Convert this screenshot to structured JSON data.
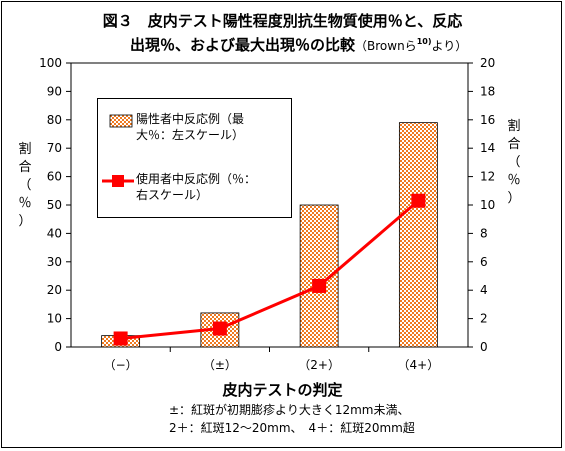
{
  "title": {
    "line1": "図３　皮内テスト陽性程度別抗生物質使用％と、反応",
    "line2": "出現％、および最大出現％の比較",
    "source_prefix": "（Brownら",
    "source_sup": "10)",
    "source_suffix": "より）"
  },
  "colors": {
    "bar_fill": "#f07a20",
    "bar_check": "#ffffff",
    "line": "#ff0000",
    "axis": "#000000"
  },
  "chart_data": {
    "type": "bar+line",
    "categories": [
      "（−）",
      "（±）",
      "（2+）",
      "（4+）"
    ],
    "series": [
      {
        "name": "陽性者中反応例（最大％：左スケール）",
        "kind": "bar",
        "axis": "left",
        "values": [
          4,
          12,
          50,
          79
        ]
      },
      {
        "name": "使用者中反応例（％：右スケール）",
        "kind": "line",
        "axis": "right",
        "values": [
          0.6,
          1.3,
          4.3,
          10.3
        ]
      }
    ],
    "y_left": {
      "min": 0,
      "max": 100,
      "step": 10,
      "ticks": [
        "0",
        "10",
        "20",
        "30",
        "40",
        "50",
        "60",
        "70",
        "80",
        "90",
        "100"
      ]
    },
    "y_right": {
      "min": 0,
      "max": 20,
      "step": 2,
      "ticks": [
        "0",
        "2",
        "4",
        "6",
        "8",
        "10",
        "12",
        "14",
        "16",
        "18",
        "20"
      ]
    },
    "ylabel_left": [
      "割",
      "合",
      "（",
      "％",
      "）"
    ],
    "ylabel_right": [
      "割",
      "合",
      "（",
      "％",
      "）"
    ],
    "xlabel": "皮内テストの判定",
    "legend": {
      "bar_line1": "陽性者中反応例（最",
      "bar_line2": "大％：左スケール）",
      "line_line1": "使用者中反応例（％：",
      "line_line2": "右スケール）"
    },
    "notes": [
      "±：紅斑が初期膨疹より大きく12mm未満、",
      "2＋：紅斑12〜20mm、　4＋：紅斑20mm超"
    ]
  }
}
